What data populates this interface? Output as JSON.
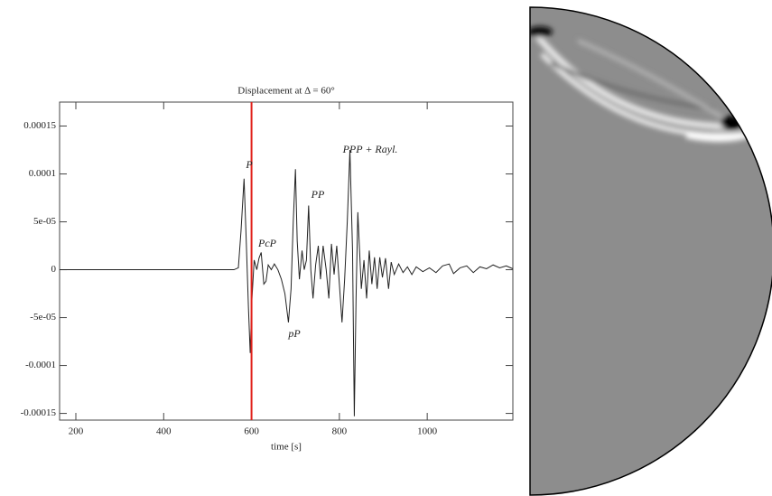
{
  "chart_data": {
    "type": "line",
    "title": "Displacement at Δ = 60°",
    "x_label": "time [s]",
    "xlim": [
      163,
      1195
    ],
    "xticks": [
      200,
      400,
      600,
      800,
      1000
    ],
    "ylim": [
      -0.000157,
      0.000175
    ],
    "yticks": [
      -0.00015,
      -0.0001,
      {
        "value": -5e-05,
        "label": "-5e-05"
      },
      0,
      {
        "value": 5e-05,
        "label": "5e-05"
      },
      0.0001,
      0.00015
    ],
    "marker_x": 600,
    "marker_color": "#e0201a",
    "annotations": [
      "P",
      "PcP",
      "pP",
      "PP",
      "PPP + Rayl."
    ],
    "series": [
      {
        "color": "#222222",
        "x": [
          163,
          560,
          570,
          576,
          583,
          588,
          593,
          597,
          601,
          606,
          612,
          617,
          622,
          628,
          633,
          638,
          645,
          652,
          660,
          668,
          676,
          684,
          690,
          695,
          700,
          704,
          709,
          715,
          720,
          725,
          730,
          735,
          740,
          746,
          752,
          757,
          763,
          770,
          776,
          782,
          788,
          794,
          800,
          806,
          812,
          818,
          824,
          830,
          834,
          838,
          842,
          846,
          850,
          856,
          862,
          868,
          874,
          880,
          886,
          892,
          898,
          905,
          912,
          918,
          925,
          935,
          945,
          955,
          965,
          975,
          990,
          1005,
          1020,
          1035,
          1050,
          1060,
          1075,
          1090,
          1105,
          1120,
          1135,
          1150,
          1165,
          1180,
          1195
        ],
        "values": [
          0,
          0,
          2e-06,
          4e-05,
          9.5e-05,
          3e-05,
          -4e-05,
          -8.7e-05,
          -3e-05,
          1e-05,
          0,
          1.2e-05,
          1.8e-05,
          -1.5e-05,
          -1.2e-05,
          5e-06,
          0,
          6e-06,
          0,
          -1e-05,
          -2.5e-05,
          -5.5e-05,
          -2e-05,
          5e-05,
          0.000105,
          3e-05,
          -1e-05,
          2e-05,
          0,
          1e-05,
          6.7e-05,
          0,
          -3e-05,
          5e-06,
          2.5e-05,
          -1e-05,
          2.5e-05,
          0,
          -3e-05,
          2.7e-05,
          -5e-06,
          2.5e-05,
          -1.5e-05,
          -5.5e-05,
          -1e-05,
          5e-05,
          0.000125,
          2e-05,
          -0.000153,
          -3e-05,
          6e-05,
          2e-05,
          -2e-05,
          1e-05,
          -3e-05,
          2e-05,
          -1.5e-05,
          1.3e-05,
          -2e-05,
          1.3e-05,
          -8e-06,
          1.2e-05,
          -2e-05,
          8e-06,
          -5e-06,
          6e-06,
          -3e-06,
          3e-06,
          -5e-06,
          3e-06,
          -2e-06,
          2e-06,
          -3e-06,
          4e-06,
          6e-06,
          -4e-06,
          2e-06,
          4e-06,
          -3e-06,
          3e-06,
          1e-06,
          5e-06,
          2e-06,
          4e-06,
          1e-06
        ]
      }
    ]
  }
}
